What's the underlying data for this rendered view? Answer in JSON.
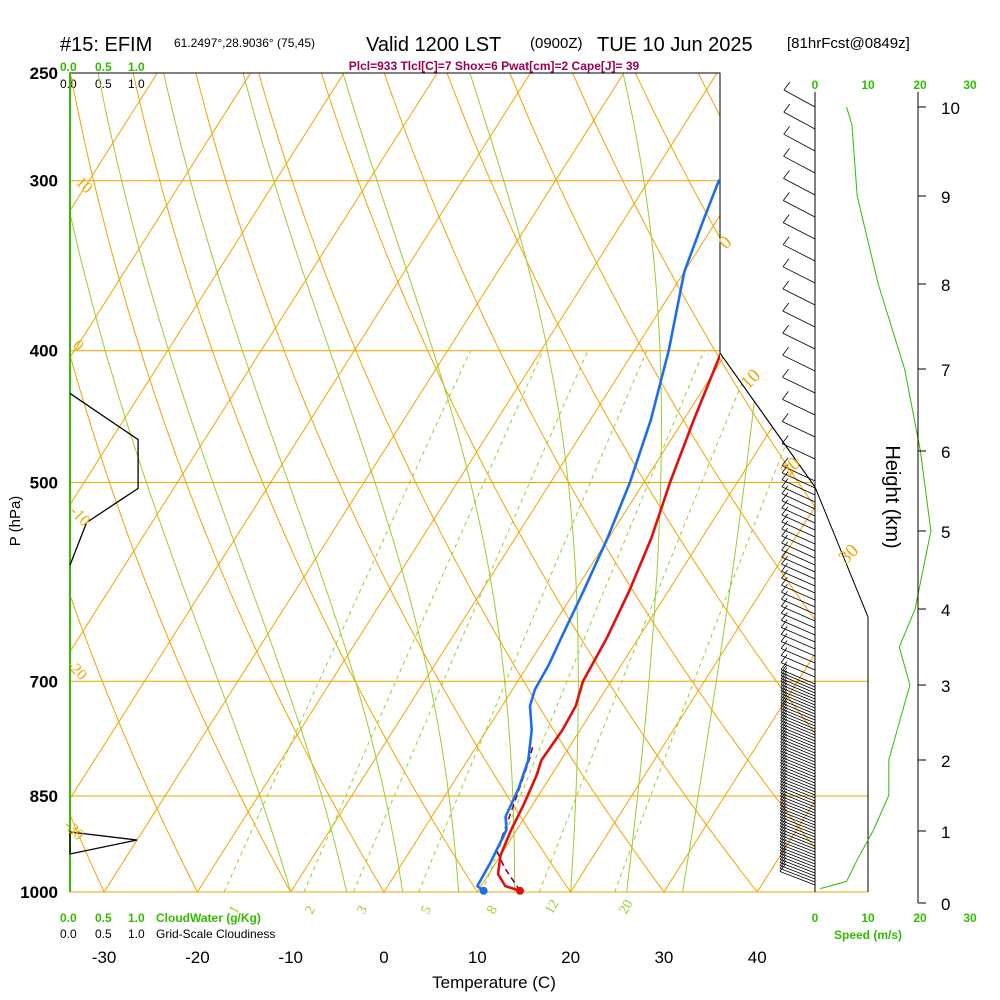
{
  "header": {
    "title_main": "#15: EFIM",
    "title_coords": "61.2497°,28.9036° (75,45)",
    "title_valid": "Valid 1200 LST",
    "title_z": "(0900Z)",
    "title_date": "TUE 10 Jun 2025",
    "title_fcst": "[81hrFcst@0849z]",
    "indices": "Plcl=933 Tlcl[C]=7 Shox=6 Pwat[cm]=2 Cape[J]= 39"
  },
  "cloud_scale": {
    "water_ticks": [
      "0.0",
      "0.5",
      "1.0"
    ],
    "cloudiness_ticks": [
      "0.0",
      "0.5",
      "1.0"
    ],
    "water_label": "CloudWater (g/Kg)",
    "cloudiness_label": "Grid-Scale Cloudiness"
  },
  "wind_panel": {
    "speed_ticks": [
      "0",
      "10",
      "20",
      "30"
    ],
    "speed_label": "Speed (m/s)"
  },
  "chart_data": {
    "type": "skew-t",
    "xlabel": "Temperature (C)",
    "ylabel": "P (hPa)",
    "y2label": "Height (km)",
    "x_ticks": [
      -30,
      -20,
      -10,
      0,
      10,
      20,
      30,
      40
    ],
    "p_ticks": [
      250,
      300,
      400,
      500,
      700,
      850,
      1000
    ],
    "height_ticks": [
      0,
      1,
      2,
      3,
      4,
      5,
      6,
      7,
      8,
      9,
      10
    ],
    "isotherm_labels": [
      "10",
      "0",
      "-10",
      "-20",
      "-30"
    ],
    "isotherm_labels_right": [
      "0",
      "10",
      "20",
      "30"
    ],
    "mixing_ratio_labels": [
      "1",
      "2",
      "3",
      "5",
      "8",
      "12",
      "20"
    ],
    "temperature": [
      {
        "p": 998,
        "t": 14.5
      },
      {
        "p": 990,
        "t": 12.6
      },
      {
        "p": 970,
        "t": 11.0
      },
      {
        "p": 940,
        "t": 10.0
      },
      {
        "p": 900,
        "t": 9.4
      },
      {
        "p": 860,
        "t": 9.0
      },
      {
        "p": 820,
        "t": 8.4
      },
      {
        "p": 800,
        "t": 7.9
      },
      {
        "p": 760,
        "t": 8.1
      },
      {
        "p": 730,
        "t": 7.9
      },
      {
        "p": 700,
        "t": 7.0
      },
      {
        "p": 650,
        "t": 6.6
      },
      {
        "p": 600,
        "t": 5.8
      },
      {
        "p": 550,
        "t": 4.6
      },
      {
        "p": 500,
        "t": 2.8
      },
      {
        "p": 450,
        "t": 1.1
      },
      {
        "p": 400,
        "t": -0.6
      },
      {
        "p": 350,
        "t": -3.2
      },
      {
        "p": 320,
        "t": -5.0
      },
      {
        "p": 300,
        "t": -6.2
      },
      {
        "p": 280,
        "t": -3.5
      },
      {
        "p": 265,
        "t": -1.8
      }
    ],
    "dewpoint": [
      {
        "p": 998,
        "t": 10.6
      },
      {
        "p": 990,
        "t": 9.6
      },
      {
        "p": 950,
        "t": 9.4
      },
      {
        "p": 900,
        "t": 8.9
      },
      {
        "p": 880,
        "t": 7.9
      },
      {
        "p": 840,
        "t": 7.4
      },
      {
        "p": 800,
        "t": 6.5
      },
      {
        "p": 760,
        "t": 4.8
      },
      {
        "p": 730,
        "t": 3.0
      },
      {
        "p": 710,
        "t": 2.4
      },
      {
        "p": 680,
        "t": 2.2
      },
      {
        "p": 650,
        "t": 1.7
      },
      {
        "p": 600,
        "t": 0.9
      },
      {
        "p": 550,
        "t": -0.1
      },
      {
        "p": 500,
        "t": -1.5
      },
      {
        "p": 450,
        "t": -3.5
      },
      {
        "p": 400,
        "t": -6.3
      },
      {
        "p": 350,
        "t": -10.0
      },
      {
        "p": 320,
        "t": -11.5
      },
      {
        "p": 300,
        "t": -12.5
      },
      {
        "p": 285,
        "t": -10.2
      },
      {
        "p": 265,
        "t": -11.2
      }
    ],
    "parcel": [
      {
        "p": 998,
        "t": 14.5
      },
      {
        "p": 960,
        "t": 11.3
      },
      {
        "p": 933,
        "t": 9.3
      },
      {
        "p": 900,
        "t": 8.7
      },
      {
        "p": 850,
        "t": 7.7
      },
      {
        "p": 800,
        "t": 6.6
      },
      {
        "p": 780,
        "t": 6.0
      }
    ],
    "wind_speed_profile": [
      {
        "h": 0.2,
        "s": 1
      },
      {
        "h": 0.3,
        "s": 6
      },
      {
        "h": 0.6,
        "s": 8
      },
      {
        "h": 1.0,
        "s": 11
      },
      {
        "h": 1.5,
        "s": 14
      },
      {
        "h": 2.0,
        "s": 14
      },
      {
        "h": 2.5,
        "s": 16
      },
      {
        "h": 3.0,
        "s": 18
      },
      {
        "h": 3.5,
        "s": 16
      },
      {
        "h": 4.0,
        "s": 19
      },
      {
        "h": 5.0,
        "s": 22
      },
      {
        "h": 6.0,
        "s": 20
      },
      {
        "h": 7.0,
        "s": 17
      },
      {
        "h": 8.0,
        "s": 12
      },
      {
        "h": 9.0,
        "s": 8
      },
      {
        "h": 9.8,
        "s": 7
      },
      {
        "h": 10.0,
        "s": 6
      }
    ],
    "cloudiness_profile": [
      {
        "p": 430,
        "c": 0.0
      },
      {
        "p": 465,
        "c": 0.37
      },
      {
        "p": 505,
        "c": 0.37
      },
      {
        "p": 535,
        "c": 0.09
      },
      {
        "p": 575,
        "c": 0.0
      }
    ],
    "grid": true,
    "legend": "none"
  }
}
